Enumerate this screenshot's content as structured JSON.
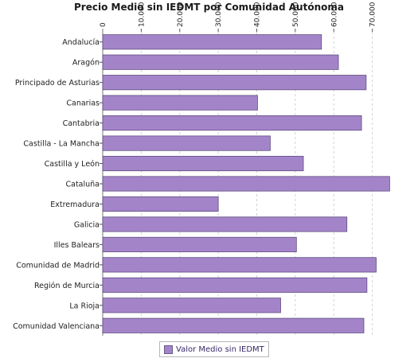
{
  "chart_data": {
    "type": "bar",
    "orientation": "horizontal",
    "title": "Precio Medio sin IEDMT por Comunidad Autónoma",
    "xlabel": "",
    "ylabel": "",
    "xlim": [
      0,
      80000
    ],
    "x_ticks": [
      "0",
      "10.000",
      "20.000",
      "30.000",
      "40.000",
      "50.000",
      "60.000",
      "70.000"
    ],
    "x_tick_values": [
      0,
      10000,
      20000,
      30000,
      40000,
      50000,
      60000,
      70000
    ],
    "axis_position": "top",
    "grid": true,
    "legend_position": "bottom",
    "bar_color": "#a484c9",
    "categories": [
      "Andalucía",
      "Aragón",
      "Principado de Asturias",
      "Canarias",
      "Cantabria",
      "Castilla - La Mancha",
      "Castilla y León",
      "Cataluña",
      "Extremadura",
      "Galicia",
      "Illes Balears",
      "Comunidad de Madrid",
      "Región de Murcia",
      "La Rioja",
      "Comunidad Valenciana"
    ],
    "series": [
      {
        "name": "Valor Medio sin IEDMT",
        "values": [
          56800,
          61200,
          68400,
          40200,
          67200,
          43500,
          52100,
          74500,
          30000,
          63400,
          50300,
          71000,
          68600,
          46200,
          67800
        ]
      }
    ]
  }
}
